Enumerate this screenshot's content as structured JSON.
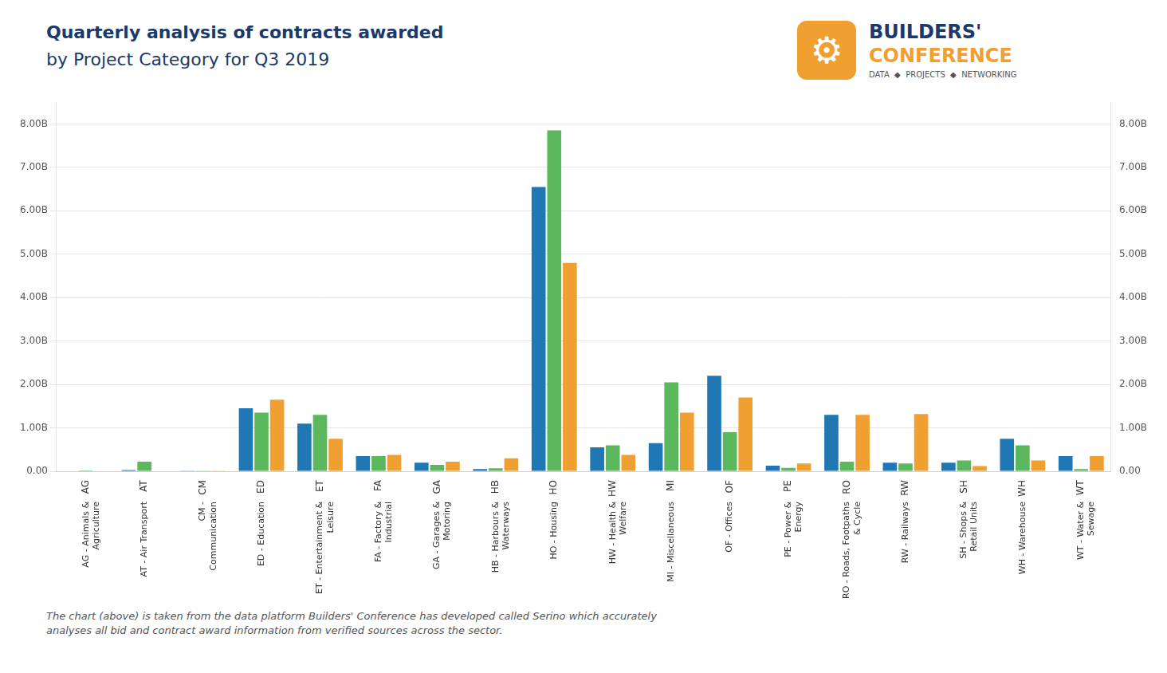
{
  "chart_data": {
    "type": "bar",
    "title": "Quarterly analysis of contracts awarded",
    "subtitle": "by Project Category for Q3 2019",
    "categories": [
      "AG - Animals &\nAgriculture",
      "AT - Air Transport",
      "CM -\nCommunication",
      "ED - Education",
      "ET - Entertainment &\nLeisure",
      "FA - Factory &\nIndustrial",
      "GA - Garages &\nMotoring",
      "HB - Harbours &\nWaterways",
      "HO - Housing",
      "HW - Health &\nWelfare",
      "MI - Miscellaneous",
      "OF - Offices",
      "PE - Power &\nEnergy",
      "RO - Roads, Footpaths\n& Cycle",
      "RW - Railways",
      "SH - Shops &\nRetail Units",
      "WH - Warehouse",
      "WT - Water &\nSewage"
    ],
    "category_codes": [
      "AG",
      "AT",
      "CM",
      "ED",
      "ET",
      "FA",
      "GA",
      "HB",
      "HO",
      "HW",
      "MI",
      "OF",
      "PE",
      "RO",
      "RW",
      "SH",
      "WH",
      "WT"
    ],
    "series": [
      {
        "color": "#1f77b4",
        "values": [
          0.01,
          0.03,
          0.005,
          1.45,
          1.1,
          0.35,
          0.2,
          0.05,
          6.55,
          0.55,
          0.65,
          2.2,
          0.13,
          1.3,
          0.2,
          0.2,
          0.75,
          0.35
        ]
      },
      {
        "color": "#5cb85c",
        "values": [
          0.02,
          0.22,
          0.005,
          1.35,
          1.3,
          0.35,
          0.15,
          0.07,
          7.85,
          0.6,
          2.05,
          0.9,
          0.08,
          0.22,
          0.18,
          0.25,
          0.6,
          0.05
        ]
      },
      {
        "color": "#f0a030",
        "values": [
          0.01,
          0.01,
          0.005,
          1.65,
          0.75,
          0.38,
          0.22,
          0.3,
          4.8,
          0.38,
          1.35,
          1.7,
          0.18,
          1.3,
          1.32,
          0.12,
          0.25,
          0.35
        ]
      }
    ],
    "ylim": [
      0,
      8.5
    ],
    "yticks": [
      {
        "value": 0,
        "label": "0.00"
      },
      {
        "value": 1,
        "label": "1.00B"
      },
      {
        "value": 2,
        "label": "2.00B"
      },
      {
        "value": 3,
        "label": "3.00B"
      },
      {
        "value": 4,
        "label": "4.00B"
      },
      {
        "value": 5,
        "label": "5.00B"
      },
      {
        "value": 6,
        "label": "6.00B"
      },
      {
        "value": 7,
        "label": "7.00B"
      },
      {
        "value": 8,
        "label": "8.00B"
      }
    ],
    "y2lim": [
      0,
      8.5
    ],
    "y2ticks": [
      {
        "value": 0,
        "label": "0.00"
      },
      {
        "value": 1,
        "label": "1.00B"
      },
      {
        "value": 2,
        "label": "2.00B"
      },
      {
        "value": 3,
        "label": "3.00B"
      },
      {
        "value": 4,
        "label": "4.00B"
      },
      {
        "value": 5,
        "label": "5.00B"
      },
      {
        "value": 6,
        "label": "6.00B"
      },
      {
        "value": 7,
        "label": "7.00B"
      },
      {
        "value": 8,
        "label": "8.00B"
      }
    ],
    "grid": true,
    "annotations": [
      "⚙",
      "BUILDERS'",
      "CONFERENCE",
      "DATA  ◆  PROJECTS  ◆  NETWORKING",
      "The chart (above) is taken from the data platform Builders' Conference has developed called Serino which accurately\nanalyses all bid and contract award information from verified sources across the sector."
    ]
  }
}
